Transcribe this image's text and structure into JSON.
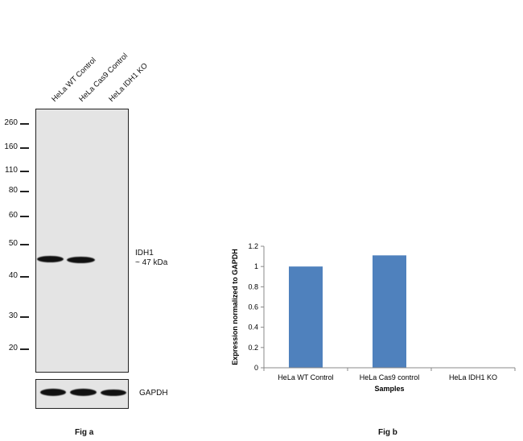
{
  "fig_a": {
    "caption": "Fig a",
    "lanes": [
      "HeLa WT Control",
      "HeLa Cas9 Control",
      "HeLa IDH1 KO"
    ],
    "markers": [
      "260",
      "160",
      "110",
      "80",
      "60",
      "50",
      "40",
      "30",
      "20"
    ],
    "band_label_line1": "IDH1",
    "band_label_line2": "~ 47 kDa",
    "loading_control_label": "GAPDH"
  },
  "fig_b": {
    "caption": "Fig b"
  },
  "chart_data": {
    "type": "bar",
    "categories": [
      "HeLa WT Control",
      "HeLa Cas9 control",
      "HeLa IDH1 KO"
    ],
    "values": [
      1.0,
      1.11,
      0.0
    ],
    "xlabel": "Samples",
    "ylabel": "Expression normalized to GAPDH",
    "ylim": [
      0,
      1.2
    ],
    "yticks": [
      "0",
      "0.2",
      "0.4",
      "0.6",
      "0.8",
      "1",
      "1.2"
    ],
    "bar_color": "#4f81bd",
    "grid": false
  }
}
